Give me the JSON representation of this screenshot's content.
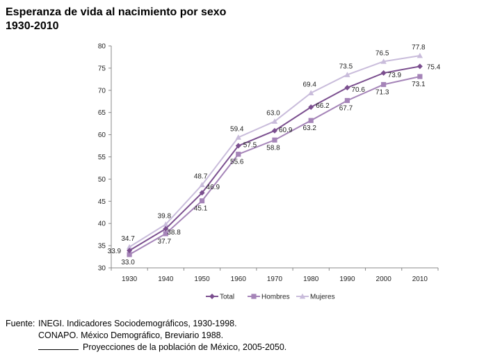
{
  "title_line1": "Esperanza de vida al nacimiento por sexo",
  "title_line2": "1930-2010",
  "chart_data": {
    "type": "line",
    "x": [
      "1930",
      "1940",
      "1950",
      "1960",
      "1970",
      "1980",
      "1990",
      "2000",
      "2010"
    ],
    "ylim": [
      30,
      80
    ],
    "yticks": [
      "30",
      "35",
      "40",
      "45",
      "50",
      "55",
      "60",
      "65",
      "70",
      "75",
      "80"
    ],
    "grid": false,
    "legend_position": "bottom",
    "series": [
      {
        "name": "Total",
        "color": "#7b4f8f",
        "marker": "diamond",
        "values": [
          33.9,
          38.8,
          46.9,
          57.5,
          60.9,
          66.2,
          70.6,
          73.9,
          75.4
        ],
        "labels": [
          "33.9",
          "38.8",
          "46.9",
          "57.5",
          "60.9",
          "66.2",
          "70.6",
          "73.9",
          "75.4"
        ]
      },
      {
        "name": "Hombres",
        "color": "#a584b8",
        "marker": "square",
        "values": [
          33.0,
          37.7,
          45.1,
          55.6,
          58.8,
          63.2,
          67.7,
          71.3,
          73.1
        ],
        "labels": [
          "33.0",
          "37.7",
          "45.1",
          "55.6",
          "58.8",
          "63.2",
          "67.7",
          "71.3",
          "73.1"
        ]
      },
      {
        "name": "Mujeres",
        "color": "#c9bcdb",
        "marker": "triangle",
        "values": [
          34.7,
          39.8,
          48.7,
          59.4,
          63.0,
          69.4,
          73.5,
          76.5,
          77.8
        ],
        "labels": [
          "34.7",
          "39.8",
          "48.7",
          "59.4",
          "63.0",
          "69.4",
          "73.5",
          "76.5",
          "77.8"
        ]
      }
    ]
  },
  "source": {
    "label": "Fuente:",
    "line1": "INEGI. Indicadores Sociodemográficos, 1930-1998.",
    "line2": "CONAPO. México Demográfico, Breviario 1988.",
    "line3": "Proyecciones de la población de México, 2005-2050."
  }
}
